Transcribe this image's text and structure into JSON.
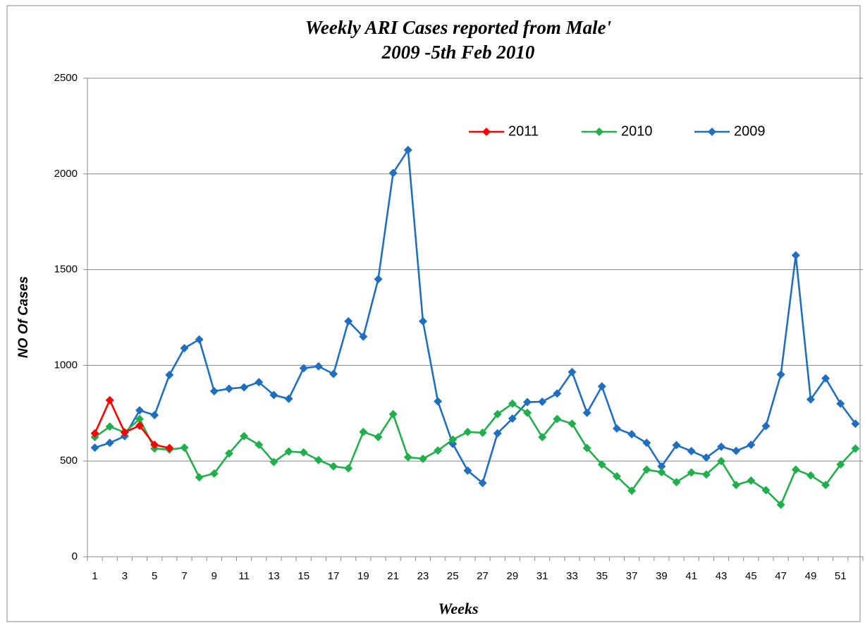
{
  "chart_data": {
    "type": "line",
    "title": "Weekly ARI Cases reported from Male'",
    "subtitle": "2009 -5th Feb 2010",
    "x_label": "Weeks",
    "y_label": "NO Of Cases",
    "categories": [
      "1",
      null,
      "3",
      null,
      "5",
      null,
      "7",
      null,
      "9",
      null,
      "11",
      null,
      "13",
      null,
      "15",
      null,
      "17",
      null,
      "19",
      null,
      "21",
      null,
      "23",
      null,
      "25",
      null,
      "27",
      null,
      "29",
      null,
      "31",
      null,
      "33",
      null,
      "35",
      null,
      "37",
      null,
      "39",
      null,
      "41",
      null,
      "43",
      null,
      "45",
      null,
      "47",
      null,
      "49",
      null,
      "51",
      null
    ],
    "series": [
      {
        "name": "2011",
        "color": "#ff0000",
        "values": [
          645,
          818,
          650,
          685,
          585,
          568,
          null,
          null,
          null,
          null,
          null,
          null,
          null,
          null,
          null,
          null,
          null,
          null,
          null,
          null,
          null,
          null,
          null,
          null,
          null,
          null,
          null,
          null,
          null,
          null,
          null,
          null,
          null,
          null,
          null,
          null,
          null,
          null,
          null,
          null,
          null,
          null,
          null,
          null,
          null,
          null,
          null,
          null,
          null,
          null,
          null,
          null
        ]
      },
      {
        "name": "2010",
        "color": "#1fb04b",
        "values": [
          625,
          680,
          650,
          720,
          565,
          560,
          570,
          415,
          435,
          540,
          630,
          585,
          495,
          550,
          545,
          505,
          472,
          462,
          652,
          625,
          745,
          520,
          512,
          555,
          612,
          652,
          648,
          745,
          800,
          752,
          625,
          720,
          695,
          568,
          482,
          420,
          345,
          455,
          442,
          390,
          440,
          430,
          500,
          375,
          398,
          348,
          272,
          455,
          425,
          375,
          482,
          565
        ]
      },
      {
        "name": "2009",
        "color": "#1f6fc0",
        "values": [
          570,
          595,
          630,
          765,
          740,
          950,
          1090,
          1135,
          865,
          878,
          885,
          912,
          845,
          825,
          985,
          995,
          955,
          1230,
          1150,
          1450,
          2005,
          2125,
          1230,
          812,
          590,
          450,
          385,
          645,
          722,
          808,
          810,
          853,
          965,
          752,
          890,
          670,
          640,
          595,
          472,
          583,
          552,
          518,
          575,
          553,
          585,
          683,
          952,
          1575,
          822,
          932,
          800,
          695
        ]
      }
    ],
    "ylim": [
      0,
      2500
    ],
    "yticks": [
      0,
      500,
      1000,
      1500,
      2000,
      2500
    ],
    "grid": true,
    "legend": "top-right"
  }
}
